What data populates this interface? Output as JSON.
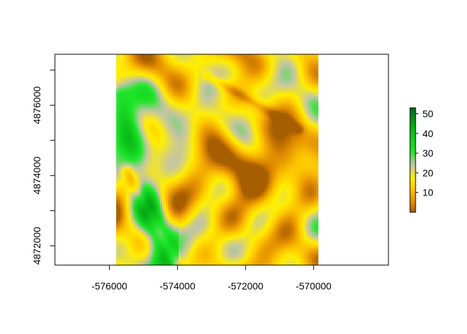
{
  "chart_data": {
    "type": "heatmap",
    "title": "",
    "xlabel": "",
    "ylabel": "",
    "xlim": [
      -577600,
      -567800
    ],
    "ylim": [
      4871450,
      4877450
    ],
    "raster_extent": {
      "x": [
        -575800,
        -569850
      ],
      "y": [
        4871450,
        4877450
      ]
    },
    "grid": false,
    "legend_position": "right",
    "x_ticks": [
      {
        "value": -576000,
        "label": "-576000"
      },
      {
        "value": -574000,
        "label": "-574000"
      },
      {
        "value": -572000,
        "label": "-572000"
      },
      {
        "value": -570000,
        "label": "-570000"
      }
    ],
    "y_ticks": [
      {
        "value": 4872000,
        "label": "4872000"
      },
      {
        "value": 4874000,
        "label": "4874000"
      },
      {
        "value": 4876000,
        "label": "4876000"
      }
    ],
    "y_minor_ticks": [
      4873000,
      4875000,
      4877000
    ],
    "colorbar": {
      "range": [
        0,
        53
      ],
      "ticks": [
        {
          "value": 10,
          "label": "10"
        },
        {
          "value": 20,
          "label": "20"
        },
        {
          "value": 30,
          "label": "30"
        },
        {
          "value": 40,
          "label": "40"
        },
        {
          "value": 50,
          "label": "50"
        }
      ],
      "stops": [
        {
          "value": 0,
          "color": "#a65e00"
        },
        {
          "value": 5,
          "color": "#e08a00"
        },
        {
          "value": 11,
          "color": "#fcc200"
        },
        {
          "value": 17,
          "color": "#ffef00"
        },
        {
          "value": 24,
          "color": "#c4c4a6"
        },
        {
          "value": 31,
          "color": "#1ee62a"
        },
        {
          "value": 42,
          "color": "#09b815"
        },
        {
          "value": 53,
          "color": "#00661e"
        }
      ]
    }
  }
}
